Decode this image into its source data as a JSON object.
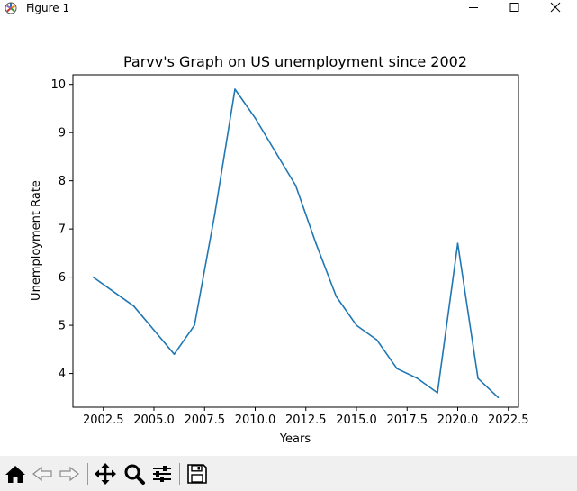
{
  "window": {
    "title": "Figure 1",
    "app_icon": "matplotlib-icon",
    "buttons": [
      "minimize-icon",
      "maximize-icon",
      "close-icon"
    ]
  },
  "chart_data": {
    "type": "line",
    "title": "Parvv's Graph on US unemployment since 2002",
    "xlabel": "Years",
    "ylabel": "Unemployment Rate",
    "xlim": [
      2001.0,
      2023.0
    ],
    "ylim": [
      3.3,
      10.2
    ],
    "xticks": [
      "2002.5",
      "2005.0",
      "2007.5",
      "2010.0",
      "2012.5",
      "2015.0",
      "2017.5",
      "2020.0",
      "2022.5"
    ],
    "yticks": [
      "4",
      "5",
      "6",
      "7",
      "8",
      "9",
      "10"
    ],
    "grid": false,
    "line_color": "#1f77b4",
    "series": [
      {
        "x": [
          2002,
          2003,
          2004,
          2005,
          2006,
          2007,
          2008,
          2009,
          2010,
          2011,
          2012,
          2013,
          2014,
          2015,
          2016,
          2017,
          2018,
          2019,
          2020,
          2021,
          2022
        ],
        "y": [
          6.0,
          5.7,
          5.4,
          4.9,
          4.4,
          5.0,
          7.3,
          9.9,
          9.3,
          8.6,
          7.9,
          6.7,
          5.6,
          5.0,
          4.7,
          4.1,
          3.9,
          3.6,
          6.7,
          3.9,
          3.5
        ]
      }
    ]
  },
  "toolbar": {
    "buttons": [
      "home-icon",
      "back-icon",
      "forward-icon",
      "pan-icon",
      "zoom-icon",
      "configure-subplots-icon",
      "save-icon"
    ]
  }
}
